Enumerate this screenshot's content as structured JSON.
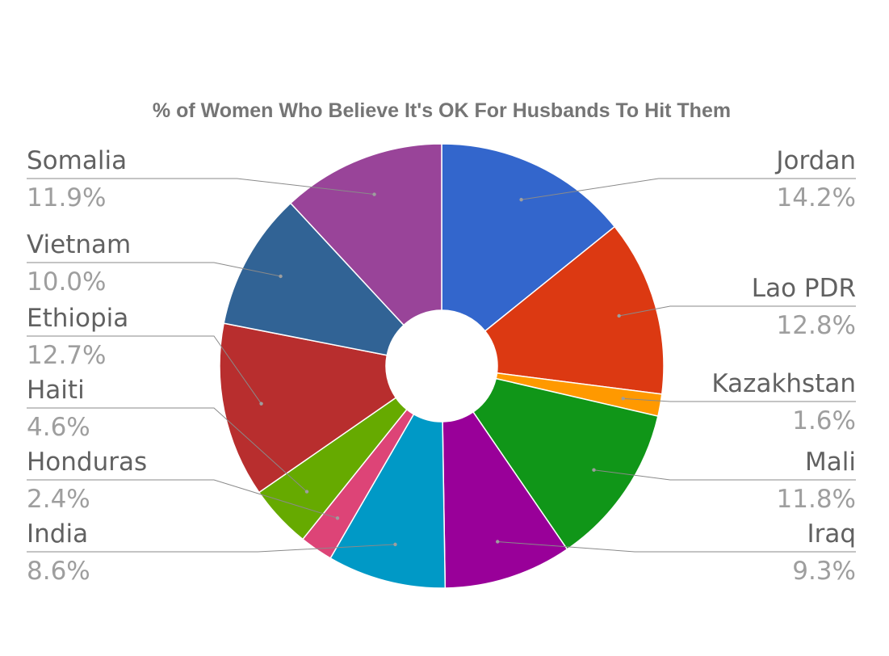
{
  "chart_data": {
    "type": "pie",
    "title": "% of Women Who Believe It's OK For Husbands To Hit Them",
    "donut": true,
    "legend": "labels-outside",
    "slices": [
      {
        "label": "Jordan",
        "value": 14.2,
        "value_label": "14.2%",
        "color": "#3366cc"
      },
      {
        "label": "Lao PDR",
        "value": 12.8,
        "value_label": "12.8%",
        "color": "#dc3912"
      },
      {
        "label": "Kazakhstan",
        "value": 1.6,
        "value_label": "1.6%",
        "color": "#ff9900"
      },
      {
        "label": "Mali",
        "value": 11.8,
        "value_label": "11.8%",
        "color": "#109618"
      },
      {
        "label": "Iraq",
        "value": 9.3,
        "value_label": "9.3%",
        "color": "#990099"
      },
      {
        "label": "India",
        "value": 8.6,
        "value_label": "8.6%",
        "color": "#0099c6"
      },
      {
        "label": "Honduras",
        "value": 2.4,
        "value_label": "2.4%",
        "color": "#dd4477"
      },
      {
        "label": "Haiti",
        "value": 4.6,
        "value_label": "4.6%",
        "color": "#66aa00"
      },
      {
        "label": "Ethiopia",
        "value": 12.7,
        "value_label": "12.7%",
        "color": "#b82e2e"
      },
      {
        "label": "Vietnam",
        "value": 10.0,
        "value_label": "10.0%",
        "color": "#316395"
      },
      {
        "label": "Somalia",
        "value": 11.9,
        "value_label": "11.9%",
        "color": "#994499"
      }
    ]
  }
}
